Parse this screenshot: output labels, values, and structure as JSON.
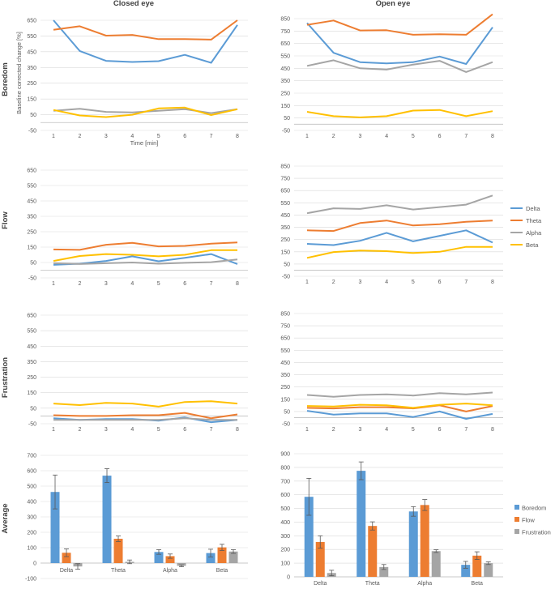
{
  "column_titles": [
    "Closed eye",
    "Open eye"
  ],
  "row_titles": [
    "Boredom",
    "Flow",
    "Frustration",
    "Average"
  ],
  "colors": {
    "Delta": "#5b9bd5",
    "Theta": "#ed7d31",
    "Alpha": "#a5a5a5",
    "Beta": "#ffc000",
    "Boredom": "#5b9bd5",
    "Flow": "#ed7d31",
    "Frustration": "#a5a5a5"
  },
  "line_legend": [
    "Delta",
    "Theta",
    "Alpha",
    "Beta"
  ],
  "bar_legend": [
    "Boredom",
    "Flow",
    "Frustration"
  ],
  "chart_data": [
    {
      "id": "boredom-closed",
      "type": "line",
      "row": "Boredom",
      "column": "Closed eye",
      "x": [
        1,
        2,
        3,
        4,
        5,
        6,
        7,
        8
      ],
      "xlabel": "Time [min]",
      "ylabel": "Baseline corrected change [%]",
      "ylim": [
        -50,
        650
      ],
      "yticks": [
        -50,
        50,
        150,
        250,
        350,
        450,
        550,
        650
      ],
      "series": [
        {
          "name": "Delta",
          "values": [
            650,
            455,
            392,
            385,
            390,
            430,
            380,
            620
          ]
        },
        {
          "name": "Theta",
          "values": [
            590,
            612,
            552,
            557,
            530,
            530,
            527,
            650
          ]
        },
        {
          "name": "Alpha",
          "values": [
            75,
            88,
            68,
            65,
            75,
            85,
            60,
            85
          ]
        },
        {
          "name": "Beta",
          "values": [
            80,
            45,
            35,
            50,
            90,
            95,
            48,
            85
          ]
        }
      ]
    },
    {
      "id": "boredom-open",
      "type": "line",
      "row": "Boredom",
      "column": "Open eye",
      "x": [
        1,
        2,
        3,
        4,
        5,
        6,
        7,
        8
      ],
      "xlabel": "",
      "ylabel": "",
      "ylim": [
        -50,
        850
      ],
      "yticks": [
        -50,
        50,
        150,
        250,
        350,
        450,
        550,
        650,
        750,
        850
      ],
      "series": [
        {
          "name": "Delta",
          "values": [
            815,
            575,
            500,
            490,
            500,
            545,
            485,
            780
          ]
        },
        {
          "name": "Theta",
          "values": [
            800,
            835,
            755,
            757,
            720,
            725,
            720,
            885
          ]
        },
        {
          "name": "Alpha",
          "values": [
            470,
            515,
            450,
            440,
            480,
            510,
            420,
            500
          ]
        },
        {
          "name": "Beta",
          "values": [
            100,
            65,
            55,
            65,
            110,
            115,
            65,
            105
          ]
        }
      ]
    },
    {
      "id": "flow-closed",
      "type": "line",
      "row": "Flow",
      "column": "Closed eye",
      "x": [
        1,
        2,
        3,
        4,
        5,
        6,
        7,
        8
      ],
      "xlabel": "",
      "ylabel": "",
      "ylim": [
        -50,
        650
      ],
      "yticks": [
        -50,
        50,
        150,
        250,
        350,
        450,
        550,
        650
      ],
      "series": [
        {
          "name": "Delta",
          "values": [
            35,
            42,
            60,
            90,
            58,
            80,
            105,
            40
          ]
        },
        {
          "name": "Theta",
          "values": [
            135,
            132,
            165,
            178,
            155,
            158,
            172,
            180
          ]
        },
        {
          "name": "Alpha",
          "values": [
            45,
            40,
            45,
            50,
            42,
            48,
            52,
            70
          ]
        },
        {
          "name": "Beta",
          "values": [
            60,
            92,
            105,
            100,
            90,
            100,
            130,
            130
          ]
        }
      ]
    },
    {
      "id": "flow-open",
      "type": "line",
      "row": "Flow",
      "column": "Open eye",
      "x": [
        1,
        2,
        3,
        4,
        5,
        6,
        7,
        8
      ],
      "xlabel": "",
      "ylabel": "",
      "ylim": [
        -50,
        850
      ],
      "yticks": [
        -50,
        50,
        150,
        250,
        350,
        450,
        550,
        650,
        750,
        850
      ],
      "series": [
        {
          "name": "Delta",
          "values": [
            215,
            205,
            240,
            305,
            235,
            280,
            325,
            225
          ]
        },
        {
          "name": "Theta",
          "values": [
            325,
            320,
            385,
            405,
            365,
            375,
            395,
            405
          ]
        },
        {
          "name": "Alpha",
          "values": [
            465,
            505,
            500,
            530,
            495,
            515,
            535,
            610
          ]
        },
        {
          "name": "Beta",
          "values": [
            100,
            148,
            160,
            155,
            140,
            150,
            190,
            190
          ]
        }
      ]
    },
    {
      "id": "frustration-closed",
      "type": "line",
      "row": "Frustration",
      "column": "Closed eye",
      "x": [
        1,
        2,
        3,
        4,
        5,
        6,
        7,
        8
      ],
      "xlabel": "",
      "ylabel": "",
      "ylim": [
        -50,
        650
      ],
      "yticks": [
        -50,
        50,
        150,
        250,
        350,
        450,
        550,
        650
      ],
      "series": [
        {
          "name": "Delta",
          "values": [
            -15,
            -25,
            -20,
            -20,
            -30,
            -10,
            -40,
            -25
          ]
        },
        {
          "name": "Theta",
          "values": [
            5,
            0,
            0,
            5,
            5,
            20,
            -15,
            10
          ]
        },
        {
          "name": "Alpha",
          "values": [
            -25,
            -25,
            -25,
            -25,
            -25,
            -15,
            -25,
            -25
          ]
        },
        {
          "name": "Beta",
          "values": [
            80,
            70,
            85,
            80,
            60,
            90,
            95,
            80
          ]
        }
      ]
    },
    {
      "id": "frustration-open",
      "type": "line",
      "row": "Frustration",
      "column": "Open eye",
      "x": [
        1,
        2,
        3,
        4,
        5,
        6,
        7,
        8
      ],
      "xlabel": "",
      "ylabel": "",
      "ylim": [
        -50,
        850
      ],
      "yticks": [
        -50,
        50,
        150,
        250,
        350,
        450,
        550,
        650,
        750,
        850
      ],
      "series": [
        {
          "name": "Delta",
          "values": [
            55,
            25,
            35,
            35,
            5,
            50,
            -10,
            30
          ]
        },
        {
          "name": "Theta",
          "values": [
            80,
            75,
            85,
            85,
            75,
            100,
            50,
            95
          ]
        },
        {
          "name": "Alpha",
          "values": [
            185,
            170,
            185,
            190,
            180,
            200,
            190,
            205
          ]
        },
        {
          "name": "Beta",
          "values": [
            95,
            90,
            105,
            100,
            80,
            105,
            115,
            100
          ]
        }
      ]
    },
    {
      "id": "average-closed",
      "type": "bar",
      "row": "Average",
      "column": "Closed eye",
      "categories": [
        "Delta",
        "Theta",
        "Alpha",
        "Beta"
      ],
      "ylim": [
        -100,
        700
      ],
      "yticks": [
        -100,
        0,
        100,
        200,
        300,
        400,
        500,
        600,
        700
      ],
      "series": [
        {
          "name": "Boredom",
          "values": [
            462,
            568,
            72,
            65
          ],
          "errors": [
            110,
            45,
            15,
            25
          ]
        },
        {
          "name": "Flow",
          "values": [
            67,
            158,
            45,
            102
          ],
          "errors": [
            25,
            18,
            14,
            20
          ]
        },
        {
          "name": "Frustration",
          "values": [
            -22,
            8,
            -18,
            75
          ],
          "errors": [
            18,
            12,
            6,
            12
          ]
        }
      ]
    },
    {
      "id": "average-open",
      "type": "bar",
      "row": "Average",
      "column": "Open eye",
      "categories": [
        "Delta",
        "Theta",
        "Alpha",
        "Beta"
      ],
      "ylim": [
        0,
        900
      ],
      "yticks": [
        0,
        100,
        200,
        300,
        400,
        500,
        600,
        700,
        800,
        900
      ],
      "series": [
        {
          "name": "Boredom",
          "values": [
            585,
            775,
            478,
            88
          ],
          "errors": [
            135,
            65,
            35,
            25
          ]
        },
        {
          "name": "Flow",
          "values": [
            255,
            372,
            525,
            155
          ],
          "errors": [
            45,
            30,
            40,
            28
          ]
        },
        {
          "name": "Frustration",
          "values": [
            28,
            72,
            188,
            100
          ],
          "errors": [
            20,
            18,
            10,
            10
          ]
        }
      ]
    }
  ]
}
